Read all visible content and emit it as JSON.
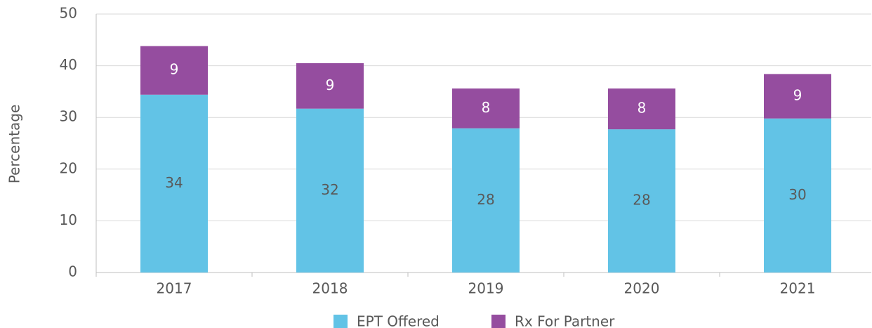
{
  "chart_data": {
    "type": "stacked_bar",
    "y_label": "Percentage",
    "categories": [
      "2017",
      "2018",
      "2019",
      "2020",
      "2021"
    ],
    "series": [
      {
        "name": "EPT Offered",
        "color": "#62c3e6",
        "values": [
          34.4,
          31.7,
          27.9,
          27.7,
          29.8
        ],
        "value_labels": [
          "34",
          "32",
          "28",
          "28",
          "30"
        ],
        "label_color": "#595959"
      },
      {
        "name": "Rx For Partner",
        "color": "#954d9f",
        "values": [
          9.4,
          8.8,
          7.7,
          7.9,
          8.6
        ],
        "value_labels": [
          "9",
          "9",
          "8",
          "8",
          "9"
        ],
        "label_color": "#ffffff"
      }
    ],
    "ylim": [
      0,
      50
    ],
    "yticks": [
      0,
      10,
      20,
      30,
      40,
      50
    ],
    "grid": true,
    "legend": "bottom"
  }
}
